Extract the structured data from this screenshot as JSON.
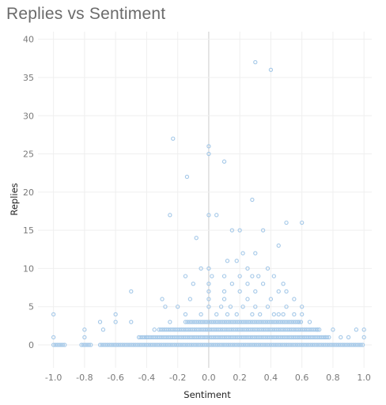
{
  "chart_data": {
    "type": "scatter",
    "title": "Replies vs Sentiment",
    "xlabel": "Sentiment",
    "ylabel": "Replies",
    "xlim": [
      -1.1,
      1.05
    ],
    "ylim": [
      -3,
      41
    ],
    "x_ticks": [
      -1.0,
      -0.8,
      -0.6,
      -0.4,
      -0.2,
      0.0,
      0.2,
      0.4,
      0.6,
      0.8,
      1.0
    ],
    "y_ticks": [
      0,
      5,
      10,
      15,
      20,
      25,
      30,
      35,
      40
    ],
    "x_tick_labels": [
      "-1.0",
      "-0.8",
      "-0.6",
      "-0.4",
      "-0.2",
      "0.0",
      "0.2",
      "0.4",
      "0.6",
      "0.8",
      "1.0"
    ],
    "y_tick_labels": [
      "0",
      "5",
      "10",
      "15",
      "20",
      "25",
      "30",
      "35",
      "40"
    ],
    "grid": true,
    "zero_line": "x",
    "marker_color": "#a4c8e8",
    "points": [
      [
        0.3,
        37
      ],
      [
        0.4,
        36
      ],
      [
        0.0,
        26
      ],
      [
        -0.23,
        27
      ],
      [
        0.0,
        25
      ],
      [
        0.1,
        24
      ],
      [
        -0.14,
        22
      ],
      [
        0.28,
        19
      ],
      [
        -0.25,
        17
      ],
      [
        0.0,
        17
      ],
      [
        0.05,
        17
      ],
      [
        0.5,
        16
      ],
      [
        0.6,
        16
      ],
      [
        0.15,
        15
      ],
      [
        0.2,
        15
      ],
      [
        0.35,
        15
      ],
      [
        -0.08,
        14
      ],
      [
        0.45,
        13
      ],
      [
        0.22,
        12
      ],
      [
        0.3,
        12
      ],
      [
        0.18,
        11
      ],
      [
        0.12,
        11
      ],
      [
        0.25,
        10
      ],
      [
        0.0,
        10
      ],
      [
        -0.05,
        10
      ],
      [
        0.38,
        10
      ],
      [
        0.32,
        9
      ],
      [
        0.02,
        9
      ],
      [
        0.1,
        9
      ],
      [
        0.2,
        9
      ],
      [
        -0.15,
        9
      ],
      [
        0.28,
        9
      ],
      [
        0.42,
        9
      ],
      [
        -0.1,
        8
      ],
      [
        0.0,
        8
      ],
      [
        0.15,
        8
      ],
      [
        0.25,
        8
      ],
      [
        0.35,
        8
      ],
      [
        0.48,
        8
      ],
      [
        -0.5,
        7
      ],
      [
        0.0,
        7
      ],
      [
        0.1,
        7
      ],
      [
        0.2,
        7
      ],
      [
        0.3,
        7
      ],
      [
        0.45,
        7
      ],
      [
        0.5,
        7
      ],
      [
        -0.3,
        6
      ],
      [
        -0.12,
        6
      ],
      [
        0.0,
        6
      ],
      [
        0.1,
        6
      ],
      [
        0.25,
        6
      ],
      [
        0.4,
        6
      ],
      [
        0.55,
        6
      ],
      [
        -0.6,
        4
      ],
      [
        -1.0,
        4
      ],
      [
        -0.28,
        5
      ],
      [
        -0.2,
        5
      ],
      [
        0.0,
        5
      ],
      [
        0.08,
        5
      ],
      [
        0.14,
        5
      ],
      [
        0.22,
        5
      ],
      [
        0.3,
        5
      ],
      [
        0.38,
        5
      ],
      [
        0.5,
        5
      ],
      [
        0.6,
        5
      ],
      [
        -0.8,
        2
      ],
      [
        -0.7,
        3
      ],
      [
        -0.6,
        3
      ],
      [
        -0.5,
        3
      ],
      [
        -0.8,
        1
      ],
      [
        -1.0,
        1
      ],
      [
        -0.68,
        2
      ],
      [
        0.6,
        4
      ],
      [
        0.65,
        3
      ],
      [
        0.7,
        2
      ],
      [
        0.75,
        1
      ],
      [
        0.8,
        2
      ],
      [
        0.85,
        1
      ],
      [
        0.9,
        1
      ],
      [
        1.0,
        2
      ],
      [
        1.0,
        1
      ],
      [
        0.95,
        2
      ],
      [
        -0.35,
        2
      ],
      [
        -0.4,
        1
      ],
      [
        0.55,
        4
      ],
      [
        0.58,
        3
      ],
      [
        0.45,
        4
      ],
      [
        -0.25,
        3
      ],
      [
        -0.15,
        4
      ],
      [
        -0.05,
        4
      ],
      [
        0.05,
        4
      ],
      [
        0.12,
        4
      ],
      [
        0.18,
        4
      ],
      [
        0.28,
        4
      ],
      [
        0.33,
        4
      ],
      [
        0.42,
        4
      ],
      [
        0.48,
        4
      ]
    ],
    "dense_band": [
      {
        "y": 0,
        "xmin": -1.0,
        "xmax": 1.0,
        "gaps": [
          [
            -0.92,
            -0.82
          ],
          [
            -0.75,
            -0.7
          ]
        ]
      },
      {
        "y": 1,
        "xmin": -0.45,
        "xmax": 0.78,
        "gaps": []
      },
      {
        "y": 2,
        "xmin": -0.32,
        "xmax": 0.72,
        "gaps": []
      },
      {
        "y": 3,
        "xmin": -0.15,
        "xmax": 0.6,
        "gaps": []
      }
    ]
  }
}
